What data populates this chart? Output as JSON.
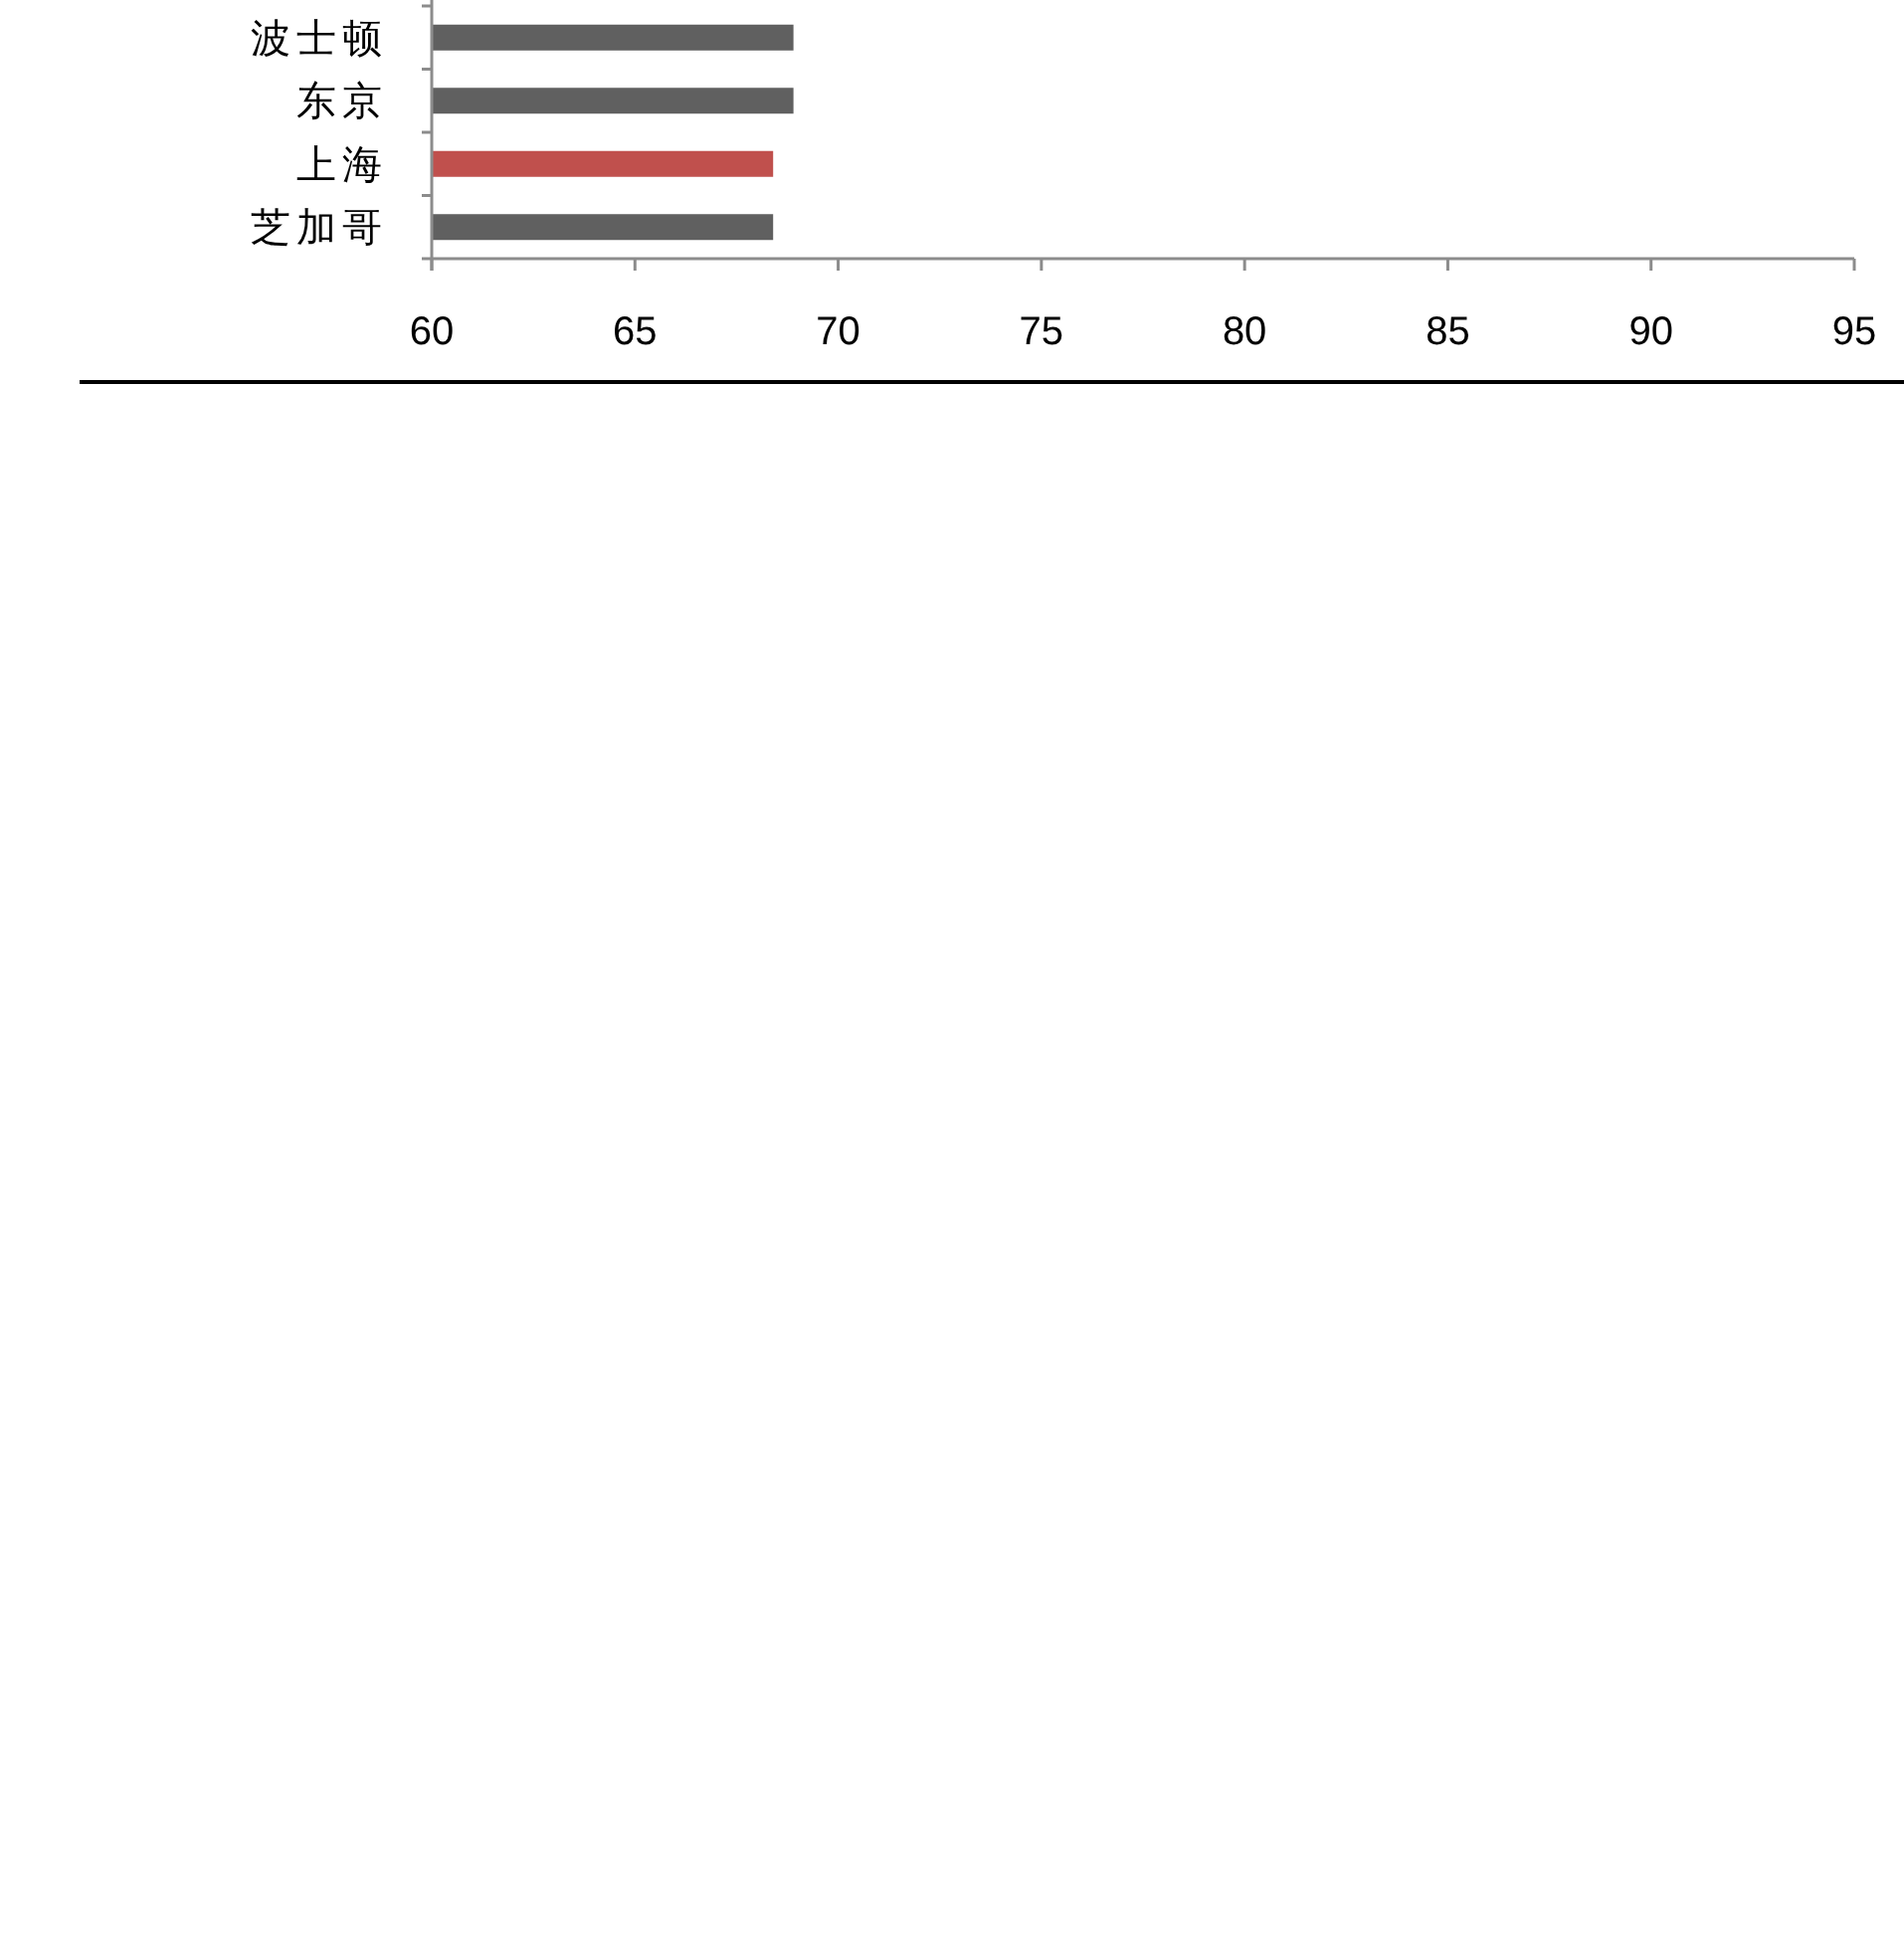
{
  "chart_data": {
    "type": "bar",
    "orientation": "horizontal",
    "categories": [
      "波士顿",
      "东京",
      "上海",
      "芝加哥"
    ],
    "values": [
      68.9,
      68.9,
      68.4,
      68.4
    ],
    "colors": [
      "#606060",
      "#606060",
      "#c0504d",
      "#606060"
    ],
    "xlim": [
      60,
      95
    ],
    "xticks": [
      60,
      65,
      70,
      75,
      80,
      85,
      90,
      95
    ]
  }
}
